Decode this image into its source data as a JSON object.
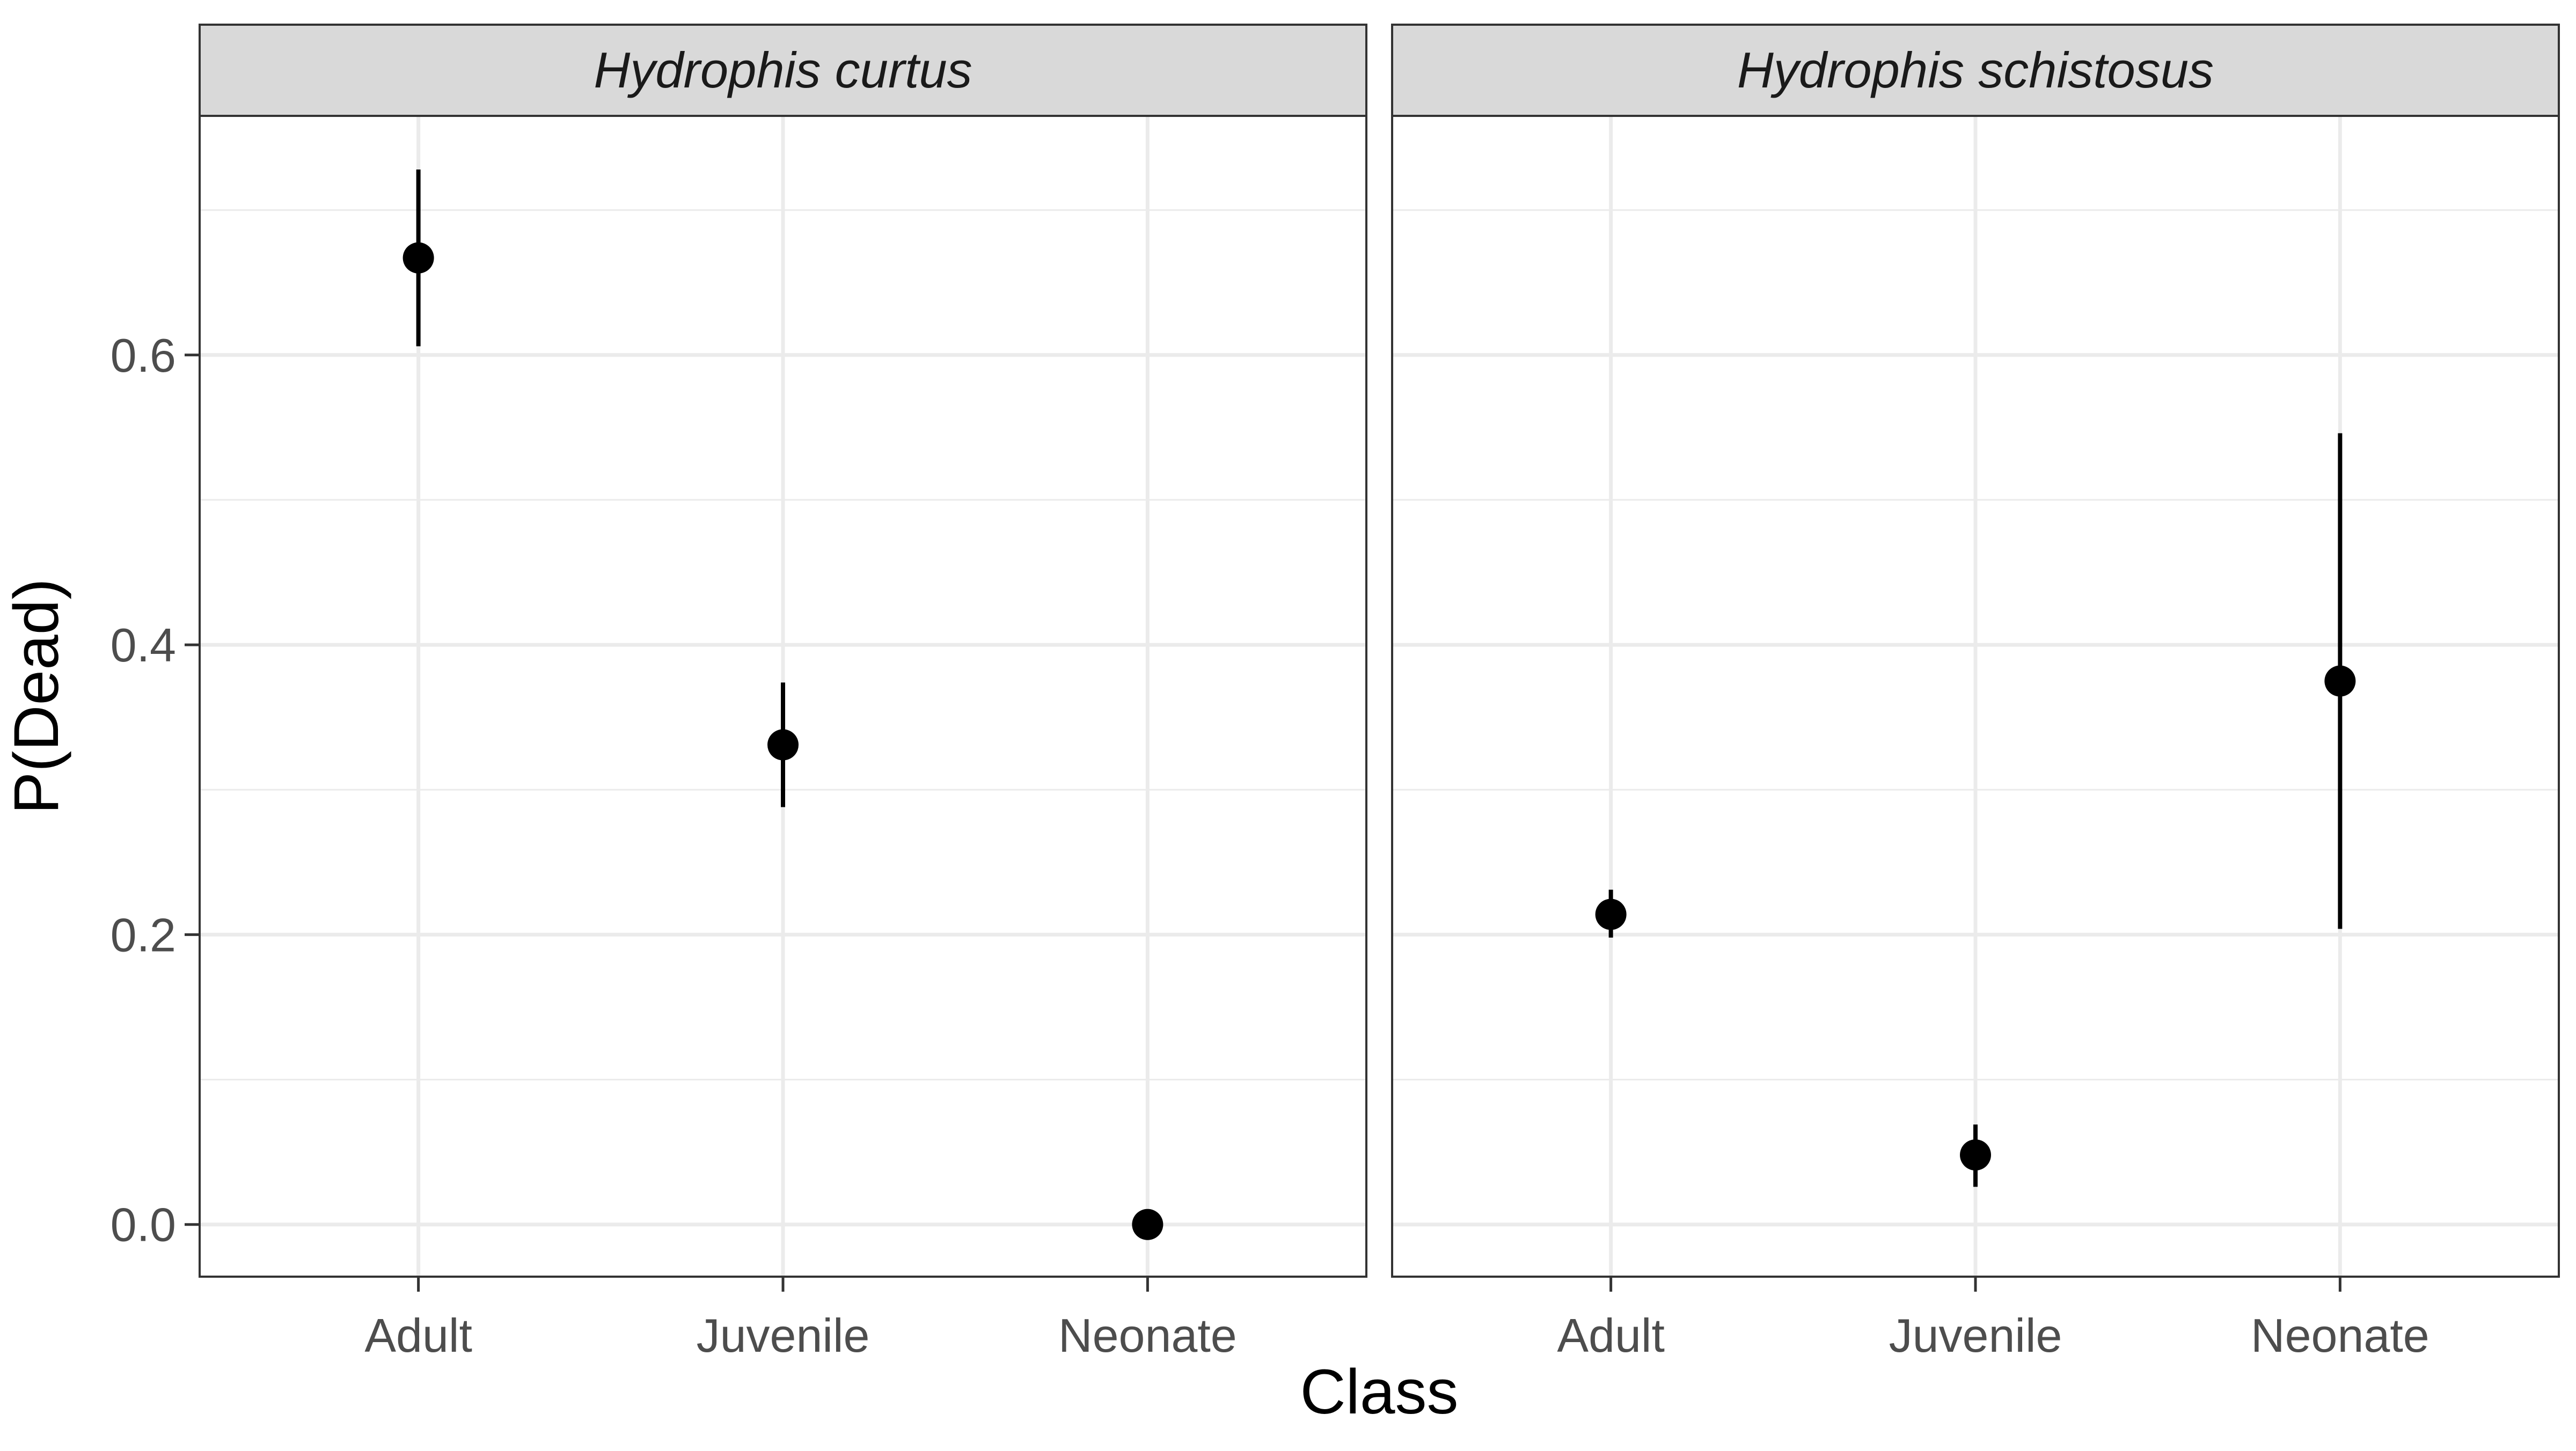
{
  "chart_data": {
    "type": "scatter",
    "title": "",
    "xlabel": "Class",
    "ylabel": "P(Dead)",
    "ylim": [
      -0.036,
      0.765
    ],
    "yticks": [
      0.0,
      0.2,
      0.4,
      0.6
    ],
    "ytick_labels": [
      "0.0",
      "0.2",
      "0.4",
      "0.6"
    ],
    "categories": [
      "Adult",
      "Juvenile",
      "Neonate"
    ],
    "grid": true,
    "legend": "none",
    "colors": {
      "point": "#000000",
      "strip_bg": "#d9d9d9",
      "grid": "#ebebeb",
      "border": "#333333"
    },
    "panels": [
      {
        "name": "Hydrophis curtus",
        "points": [
          {
            "category": "Adult",
            "value": 0.667,
            "lower": 0.606,
            "upper": 0.728
          },
          {
            "category": "Juvenile",
            "value": 0.331,
            "lower": 0.288,
            "upper": 0.374
          },
          {
            "category": "Neonate",
            "value": 0.0,
            "lower": 0.0,
            "upper": 0.0
          }
        ]
      },
      {
        "name": "Hydrophis schistosus",
        "points": [
          {
            "category": "Adult",
            "value": 0.214,
            "lower": 0.198,
            "upper": 0.231
          },
          {
            "category": "Juvenile",
            "value": 0.048,
            "lower": 0.026,
            "upper": 0.069
          },
          {
            "category": "Neonate",
            "value": 0.375,
            "lower": 0.204,
            "upper": 0.546
          }
        ]
      }
    ]
  }
}
